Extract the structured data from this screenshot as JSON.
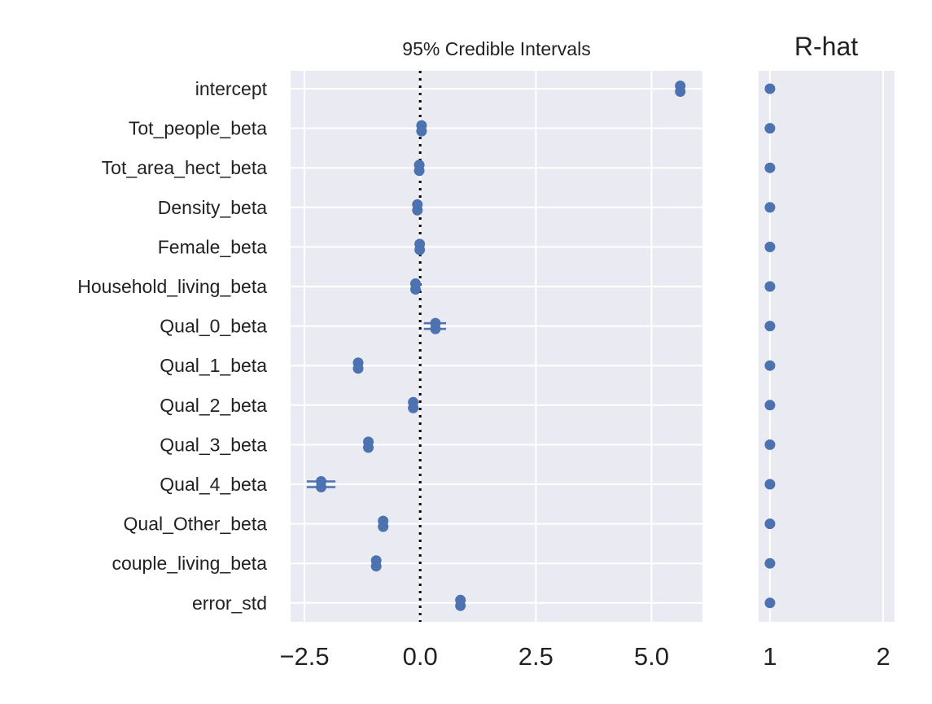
{
  "chart_data": [
    {
      "type": "forest",
      "title": "95% Credible Intervals",
      "xlim": [
        -2.8,
        6.1
      ],
      "xticks": [
        -2.5,
        0.0,
        2.5,
        5.0
      ],
      "xtick_labels": [
        "−2.5",
        "0.0",
        "2.5",
        "5.0"
      ],
      "reference_line": 0,
      "grid": true,
      "marker_color": "#4c72b0",
      "parameters": [
        {
          "name": "intercept",
          "chains": [
            {
              "mean": 5.62,
              "low": 5.57,
              "high": 5.67
            },
            {
              "mean": 5.62,
              "low": 5.57,
              "high": 5.67
            }
          ]
        },
        {
          "name": "Tot_people_beta",
          "chains": [
            {
              "mean": 0.03,
              "low": -0.01,
              "high": 0.07
            },
            {
              "mean": 0.03,
              "low": -0.01,
              "high": 0.07
            }
          ]
        },
        {
          "name": "Tot_area_hect_beta",
          "chains": [
            {
              "mean": -0.02,
              "low": -0.06,
              "high": 0.02
            },
            {
              "mean": -0.02,
              "low": -0.06,
              "high": 0.02
            }
          ]
        },
        {
          "name": "Density_beta",
          "chains": [
            {
              "mean": -0.06,
              "low": -0.1,
              "high": -0.02
            },
            {
              "mean": -0.06,
              "low": -0.1,
              "high": -0.02
            }
          ]
        },
        {
          "name": "Female_beta",
          "chains": [
            {
              "mean": -0.01,
              "low": -0.05,
              "high": 0.03
            },
            {
              "mean": -0.01,
              "low": -0.05,
              "high": 0.03
            }
          ]
        },
        {
          "name": "Household_living_beta",
          "chains": [
            {
              "mean": -0.1,
              "low": -0.15,
              "high": -0.05
            },
            {
              "mean": -0.1,
              "low": -0.15,
              "high": -0.05
            }
          ]
        },
        {
          "name": "Qual_0_beta",
          "chains": [
            {
              "mean": 0.33,
              "low": 0.08,
              "high": 0.56
            },
            {
              "mean": 0.33,
              "low": 0.08,
              "high": 0.56
            }
          ]
        },
        {
          "name": "Qual_1_beta",
          "chains": [
            {
              "mean": -1.34,
              "low": -1.39,
              "high": -1.29
            },
            {
              "mean": -1.34,
              "low": -1.39,
              "high": -1.29
            }
          ]
        },
        {
          "name": "Qual_2_beta",
          "chains": [
            {
              "mean": -0.15,
              "low": -0.2,
              "high": -0.1
            },
            {
              "mean": -0.15,
              "low": -0.2,
              "high": -0.1
            }
          ]
        },
        {
          "name": "Qual_3_beta",
          "chains": [
            {
              "mean": -1.12,
              "low": -1.2,
              "high": -1.04
            },
            {
              "mean": -1.12,
              "low": -1.2,
              "high": -1.04
            }
          ]
        },
        {
          "name": "Qual_4_beta",
          "chains": [
            {
              "mean": -2.14,
              "low": -2.45,
              "high": -1.83
            },
            {
              "mean": -2.14,
              "low": -2.45,
              "high": -1.83
            }
          ]
        },
        {
          "name": "Qual_Other_beta",
          "chains": [
            {
              "mean": -0.8,
              "low": -0.85,
              "high": -0.75
            },
            {
              "mean": -0.8,
              "low": -0.85,
              "high": -0.75
            }
          ]
        },
        {
          "name": "couple_living_beta",
          "chains": [
            {
              "mean": -0.95,
              "low": -1.0,
              "high": -0.9
            },
            {
              "mean": -0.95,
              "low": -1.0,
              "high": -0.9
            }
          ]
        },
        {
          "name": "error_std",
          "chains": [
            {
              "mean": 0.87,
              "low": 0.83,
              "high": 0.91
            },
            {
              "mean": 0.87,
              "low": 0.83,
              "high": 0.91
            }
          ]
        }
      ]
    },
    {
      "type": "scatter",
      "title": "R-hat",
      "xlim": [
        0.9,
        2.1
      ],
      "xticks": [
        1,
        2
      ],
      "xtick_labels": [
        "1",
        "2"
      ],
      "grid": true,
      "marker_color": "#4c72b0",
      "values": [
        1,
        1,
        1,
        1,
        1,
        1,
        1,
        1,
        1,
        1,
        1,
        1,
        1,
        1
      ]
    }
  ]
}
